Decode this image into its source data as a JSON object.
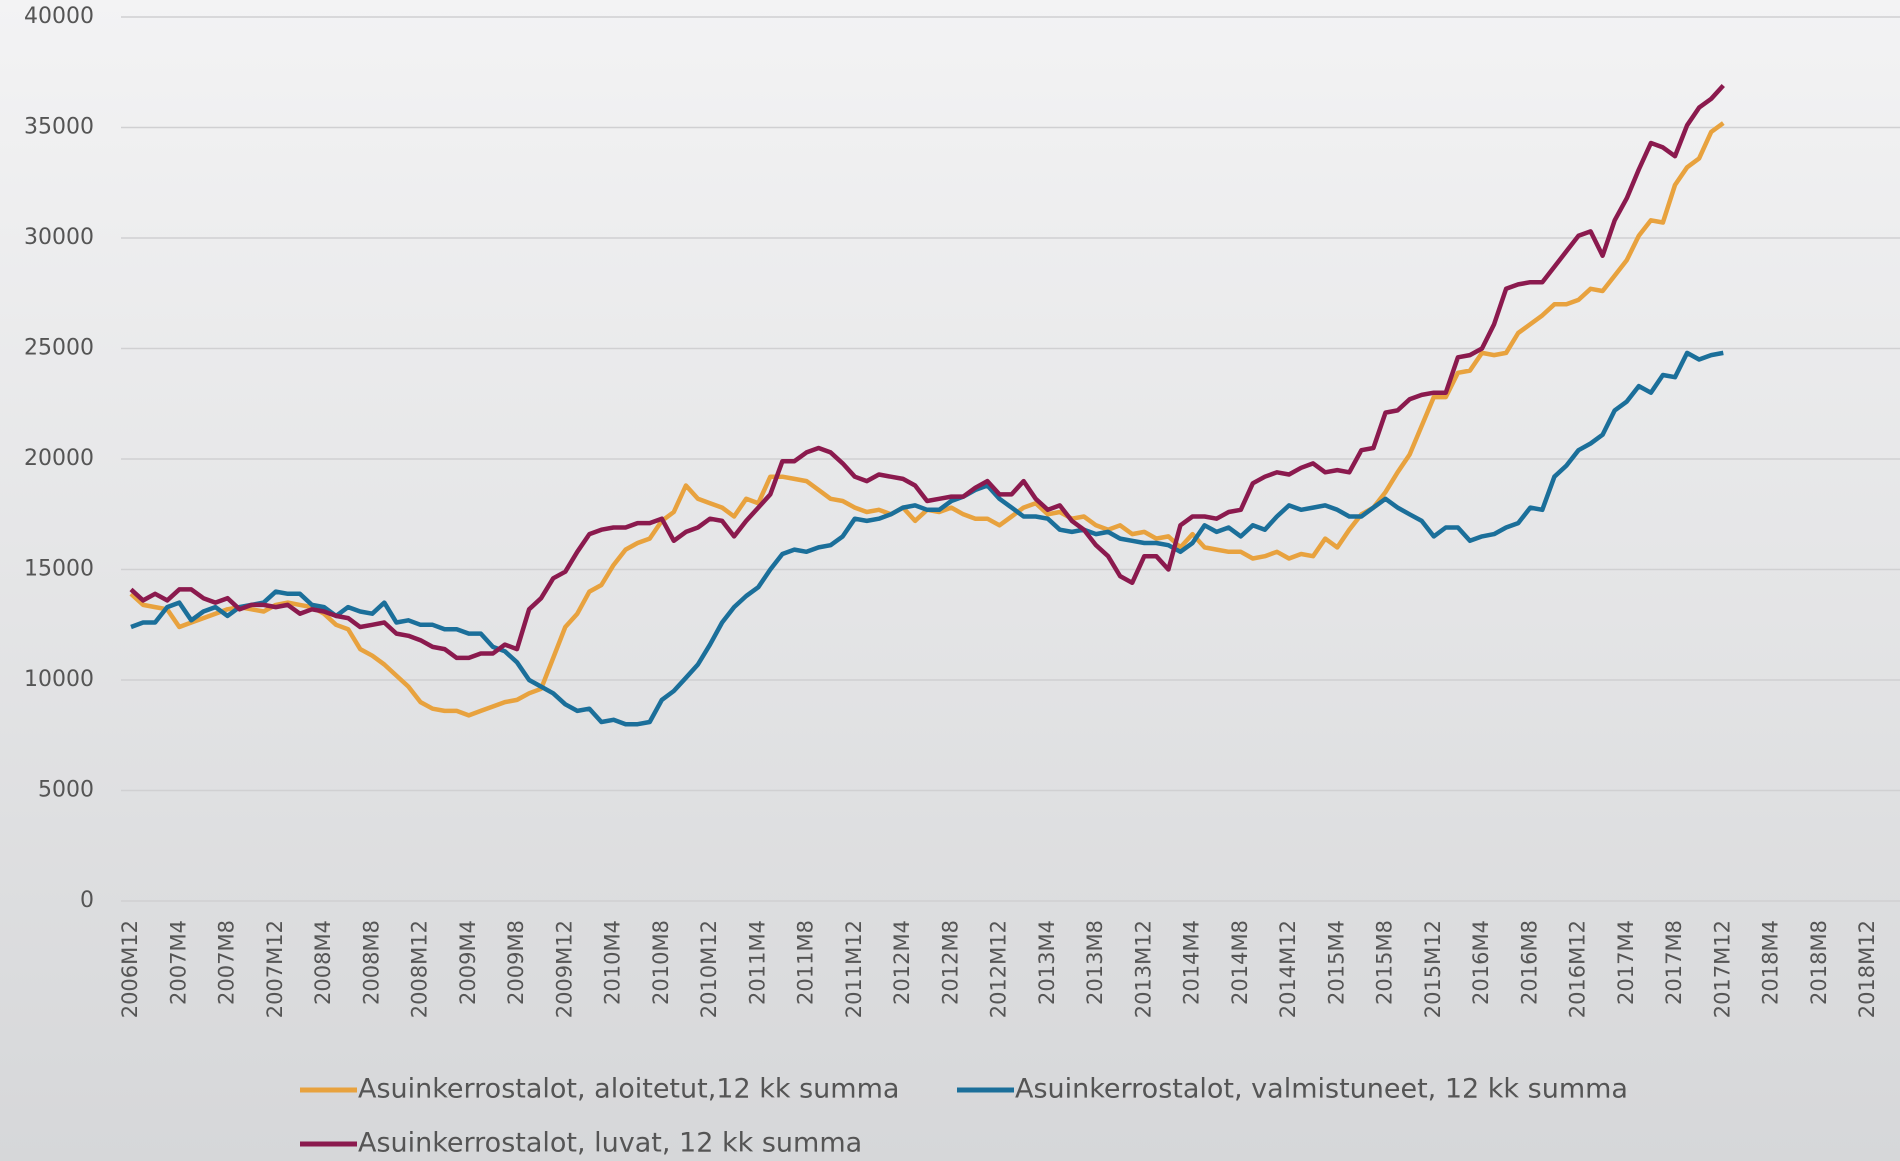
{
  "chart_data": {
    "type": "line",
    "categories": [
      "2006M12",
      null,
      null,
      null,
      "2007M4",
      null,
      null,
      null,
      "2007M8",
      null,
      null,
      null,
      "2007M12",
      null,
      null,
      null,
      "2008M4",
      null,
      null,
      null,
      "2008M8",
      null,
      null,
      null,
      "2008M12",
      null,
      null,
      null,
      "2009M4",
      null,
      null,
      null,
      "2009M8",
      null,
      null,
      null,
      "2009M12",
      null,
      null,
      null,
      "2010M4",
      null,
      null,
      null,
      "2010M8",
      null,
      null,
      null,
      "2010M12",
      null,
      null,
      null,
      "2011M4",
      null,
      null,
      null,
      "2011M8",
      null,
      null,
      null,
      "2011M12",
      null,
      null,
      null,
      "2012M4",
      null,
      null,
      null,
      "2012M8",
      null,
      null,
      null,
      "2012M12",
      null,
      null,
      null,
      "2013M4",
      null,
      null,
      null,
      "2013M8",
      null,
      null,
      null,
      "2013M12",
      null,
      null,
      null,
      "2014M4",
      null,
      null,
      null,
      "2014M8",
      null,
      null,
      null,
      "2014M12",
      null,
      null,
      null,
      "2015M4",
      null,
      null,
      null,
      "2015M8",
      null,
      null,
      null,
      "2015M12",
      null,
      null,
      null,
      "2016M4",
      null,
      null,
      null,
      "2016M8",
      null,
      null,
      null,
      "2016M12",
      null,
      null,
      null,
      "2017M4",
      null,
      null,
      null,
      "2017M8",
      null,
      null,
      null,
      "2017M12",
      null,
      null,
      null,
      "2018M4",
      null,
      null,
      null,
      "2018M8",
      null,
      null,
      null,
      "2018M12"
    ],
    "series": [
      {
        "name": "Asuinkerrostalot, aloitetut,12 kk summa",
        "color": "#e8a23e",
        "values": [
          13900,
          13400,
          13300,
          13200,
          12400,
          12600,
          12800,
          13000,
          13200,
          13300,
          13200,
          13100,
          13400,
          13500,
          13400,
          13300,
          13000,
          12500,
          12300,
          11400,
          11100,
          10700,
          10200,
          9700,
          9000,
          8700,
          8600,
          8600,
          8400,
          8600,
          8800,
          9000,
          9100,
          9400,
          9600,
          11000,
          12400,
          13000,
          14000,
          14300,
          15200,
          15900,
          16200,
          16400,
          17200,
          17600,
          18800,
          18200,
          18000,
          17800,
          17400,
          18200,
          18000,
          19200,
          19200,
          19100,
          19000,
          18600,
          18200,
          18100,
          17800,
          17600,
          17700,
          17500,
          17800,
          17200,
          17700,
          17600,
          17800,
          17500,
          17300,
          17300,
          17000,
          17400,
          17800,
          18000,
          17500,
          17600,
          17300,
          17400,
          17000,
          16800,
          17000,
          16600,
          16700,
          16400,
          16500,
          16000,
          16600,
          16000,
          15900,
          15800,
          15800,
          15500,
          15600,
          15800,
          15500,
          15700,
          15600,
          16400,
          16000,
          16800,
          17500,
          17800,
          18500,
          19400,
          20200,
          21500,
          22800,
          22800,
          23900,
          24000,
          24800,
          24700,
          24800,
          25700,
          26100,
          26500,
          27000,
          27000,
          27200,
          27700,
          27600,
          28300,
          29000,
          30100,
          30800,
          30700,
          32400,
          33200,
          33600,
          34800,
          35200,
          null,
          null,
          null,
          null,
          null,
          null,
          null,
          null,
          null,
          null,
          null,
          null
        ]
      },
      {
        "name": "Asuinkerrostalot, valmistuneet, 12 kk summa",
        "color": "#1b6f9a",
        "values": [
          12400,
          12600,
          12600,
          13300,
          13500,
          12700,
          13100,
          13300,
          12900,
          13300,
          13400,
          13500,
          14000,
          13900,
          13900,
          13400,
          13300,
          12900,
          13300,
          13100,
          13000,
          13500,
          12600,
          12700,
          12500,
          12500,
          12300,
          12300,
          12100,
          12100,
          11500,
          11300,
          10800,
          10000,
          9700,
          9400,
          8900,
          8600,
          8700,
          8100,
          8200,
          8000,
          8000,
          8100,
          9100,
          9500,
          10100,
          10700,
          11600,
          12600,
          13300,
          13800,
          14200,
          15000,
          15700,
          15900,
          15800,
          16000,
          16100,
          16500,
          17300,
          17200,
          17300,
          17500,
          17800,
          17900,
          17700,
          17700,
          18100,
          18300,
          18600,
          18800,
          18200,
          17800,
          17400,
          17400,
          17300,
          16800,
          16700,
          16800,
          16600,
          16700,
          16400,
          16300,
          16200,
          16200,
          16100,
          15800,
          16200,
          17000,
          16700,
          16900,
          16500,
          17000,
          16800,
          17400,
          17900,
          17700,
          17800,
          17900,
          17700,
          17400,
          17400,
          17800,
          18200,
          17800,
          17500,
          17200,
          16500,
          16900,
          16900,
          16300,
          16500,
          16600,
          16900,
          17100,
          17800,
          17700,
          19200,
          19700,
          20400,
          20700,
          21100,
          22200,
          22600,
          23300,
          23000,
          23800,
          23700,
          24800,
          24500,
          24700,
          24800,
          null,
          null,
          null,
          null,
          null,
          null,
          null,
          null,
          null,
          null,
          null,
          null
        ]
      },
      {
        "name": "Asuinkerrostalot, luvat, 12 kk summa",
        "color": "#8b1a4e",
        "values": [
          14100,
          13600,
          13900,
          13600,
          14100,
          14100,
          13700,
          13500,
          13700,
          13200,
          13400,
          13400,
          13300,
          13400,
          13000,
          13200,
          13100,
          12900,
          12800,
          12400,
          12500,
          12600,
          12100,
          12000,
          11800,
          11500,
          11400,
          11000,
          11000,
          11200,
          11200,
          11600,
          11400,
          13200,
          13700,
          14600,
          14900,
          15800,
          16600,
          16800,
          16900,
          16900,
          17100,
          17100,
          17300,
          16300,
          16700,
          16900,
          17300,
          17200,
          16500,
          17200,
          17800,
          18400,
          19900,
          19900,
          20300,
          20500,
          20300,
          19800,
          19200,
          19000,
          19300,
          19200,
          19100,
          18800,
          18100,
          18200,
          18300,
          18300,
          18700,
          19000,
          18400,
          18400,
          19000,
          18200,
          17700,
          17900,
          17200,
          16800,
          16100,
          15600,
          14700,
          14400,
          15600,
          15600,
          15000,
          17000,
          17400,
          17400,
          17300,
          17600,
          17700,
          18900,
          19200,
          19400,
          19300,
          19600,
          19800,
          19400,
          19500,
          19400,
          20400,
          20500,
          22100,
          22200,
          22700,
          22900,
          23000,
          23000,
          24600,
          24700,
          25000,
          26100,
          27700,
          27900,
          28000,
          28000,
          28700,
          29400,
          30100,
          30300,
          29200,
          30800,
          31800,
          33100,
          34300,
          34100,
          33700,
          35100,
          35900,
          36300,
          36900,
          null,
          null,
          null,
          null,
          null,
          null,
          null,
          null,
          null,
          null,
          null,
          null
        ]
      }
    ],
    "ylim": [
      0,
      40000
    ],
    "yticks": [
      0,
      5000,
      10000,
      15000,
      20000,
      25000,
      30000,
      35000,
      40000
    ],
    "grid": true,
    "legend": "bottom"
  }
}
